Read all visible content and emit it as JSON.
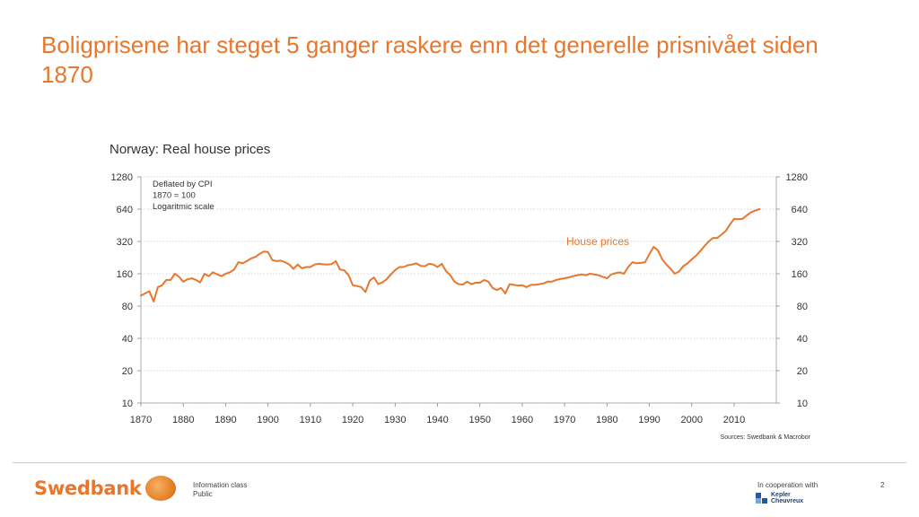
{
  "slide": {
    "title": "Boligprisene har steget 5 ganger raskere enn det generelle prisnivået siden 1870",
    "accent_color": "#e8762d"
  },
  "footer": {
    "logo_text": "Swedbank",
    "logo_icon": "oak-tree-icon",
    "info_class_label": "Information class",
    "info_class_value": "Public",
    "cooperation_label": "In cooperation with",
    "partner_line1": "Kepler",
    "partner_line2": "Cheuvreux",
    "page_number": "2"
  },
  "chart_data": {
    "type": "line",
    "title": "Norway: Real house prices",
    "notes": [
      "Deflated by CPI",
      "1870 = 100",
      "Logaritmic scale"
    ],
    "source": "Sources: Swedbank & Macrobor",
    "y_scale": "log",
    "ylim": [
      10,
      1280
    ],
    "y_ticks": [
      10,
      20,
      40,
      80,
      160,
      320,
      640,
      1280
    ],
    "y_tick_labels": [
      "10",
      "20",
      "40",
      "80",
      "160",
      "320",
      "640",
      "1280"
    ],
    "xlim": [
      1870,
      2020
    ],
    "x_ticks": [
      1870,
      1880,
      1890,
      1900,
      1910,
      1920,
      1930,
      1940,
      1950,
      1960,
      1970,
      1980,
      1990,
      2000,
      2010
    ],
    "x_tick_labels": [
      "1870",
      "1880",
      "1890",
      "1900",
      "1910",
      "1920",
      "1930",
      "1940",
      "1950",
      "1960",
      "1970",
      "1980",
      "1990",
      "2000",
      "2010"
    ],
    "grid": true,
    "series": [
      {
        "name": "House prices",
        "color": "#e8762d",
        "x": [
          1870,
          1871,
          1872,
          1873,
          1874,
          1875,
          1876,
          1877,
          1878,
          1879,
          1880,
          1881,
          1882,
          1883,
          1884,
          1885,
          1886,
          1887,
          1888,
          1889,
          1890,
          1891,
          1892,
          1893,
          1894,
          1895,
          1896,
          1897,
          1898,
          1899,
          1900,
          1901,
          1902,
          1903,
          1904,
          1905,
          1906,
          1907,
          1908,
          1909,
          1910,
          1911,
          1912,
          1913,
          1914,
          1915,
          1916,
          1917,
          1918,
          1919,
          1920,
          1921,
          1922,
          1923,
          1924,
          1925,
          1926,
          1927,
          1928,
          1929,
          1930,
          1931,
          1932,
          1933,
          1934,
          1935,
          1936,
          1937,
          1938,
          1939,
          1940,
          1941,
          1942,
          1943,
          1944,
          1945,
          1946,
          1947,
          1948,
          1949,
          1950,
          1951,
          1952,
          1953,
          1954,
          1955,
          1956,
          1957,
          1958,
          1959,
          1960,
          1961,
          1962,
          1963,
          1964,
          1965,
          1966,
          1967,
          1968,
          1969,
          1970,
          1971,
          1972,
          1973,
          1974,
          1975,
          1976,
          1977,
          1978,
          1979,
          1980,
          1981,
          1982,
          1983,
          1984,
          1985,
          1986,
          1987,
          1988,
          1989,
          1990,
          1991,
          1992,
          1993,
          1994,
          1995,
          1996,
          1997,
          1998,
          1999,
          2000,
          2001,
          2002,
          2003,
          2004,
          2005,
          2006,
          2007,
          2008,
          2009,
          2010,
          2011,
          2012,
          2013,
          2014,
          2015,
          2016
        ],
        "values": [
          100,
          105,
          110,
          88,
          120,
          125,
          140,
          140,
          160,
          150,
          135,
          142,
          145,
          140,
          133,
          160,
          152,
          165,
          158,
          152,
          160,
          165,
          175,
          205,
          200,
          210,
          222,
          230,
          245,
          258,
          255,
          215,
          210,
          212,
          205,
          195,
          178,
          195,
          180,
          185,
          185,
          195,
          198,
          196,
          195,
          197,
          210,
          175,
          172,
          155,
          125,
          123,
          120,
          108,
          138,
          148,
          128,
          133,
          142,
          158,
          173,
          185,
          185,
          192,
          195,
          200,
          190,
          188,
          198,
          195,
          185,
          198,
          170,
          155,
          135,
          128,
          127,
          135,
          128,
          132,
          132,
          140,
          135,
          118,
          113,
          118,
          105,
          128,
          126,
          124,
          125,
          120,
          126,
          126,
          128,
          130,
          135,
          135,
          140,
          143,
          145,
          148,
          152,
          155,
          158,
          155,
          160,
          158,
          155,
          150,
          145,
          158,
          162,
          165,
          160,
          185,
          205,
          200,
          202,
          205,
          245,
          285,
          265,
          220,
          195,
          178,
          160,
          168,
          188,
          200,
          218,
          235,
          260,
          290,
          320,
          345,
          345,
          370,
          400,
          460,
          520,
          515,
          520,
          560,
          600,
          620,
          640
        ]
      }
    ]
  }
}
